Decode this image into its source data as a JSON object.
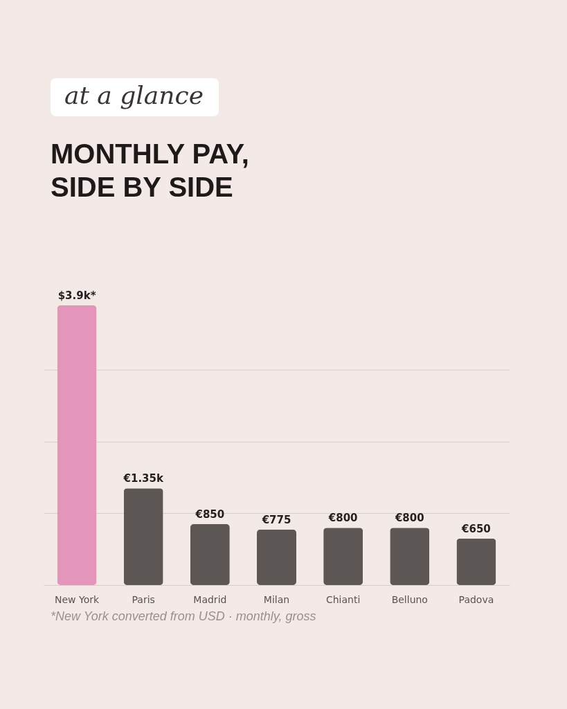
{
  "chart_data": {
    "type": "bar",
    "subtitle": "at a glance",
    "title": "MONTHLY PAY,\nSIDE BY SIDE",
    "categories": [
      "New York",
      "Paris",
      "Madrid",
      "Milan",
      "Chianti",
      "Belluno",
      "Padova"
    ],
    "values": [
      3900,
      1350,
      850,
      775,
      800,
      800,
      650
    ],
    "colors": [
      "#e396b9",
      "#5c5754",
      "#5c5754",
      "#5c5754",
      "#5c5754",
      "#5c5754",
      "#5c5754"
    ],
    "value_labels": [
      "$3.9k*",
      "€1.35k",
      "€850",
      "€775",
      "€800",
      "€800",
      "€650"
    ],
    "yticks": [
      {
        "value": 0,
        "label": null
      },
      {
        "value": 1000,
        "label": null
      },
      {
        "value": 2000,
        "label": null
      },
      {
        "value": 3000,
        "label": null
      }
    ],
    "grid": "y",
    "tick_labels": "x",
    "annotations": [
      "*New York converted from USD · monthly, gross"
    ]
  }
}
